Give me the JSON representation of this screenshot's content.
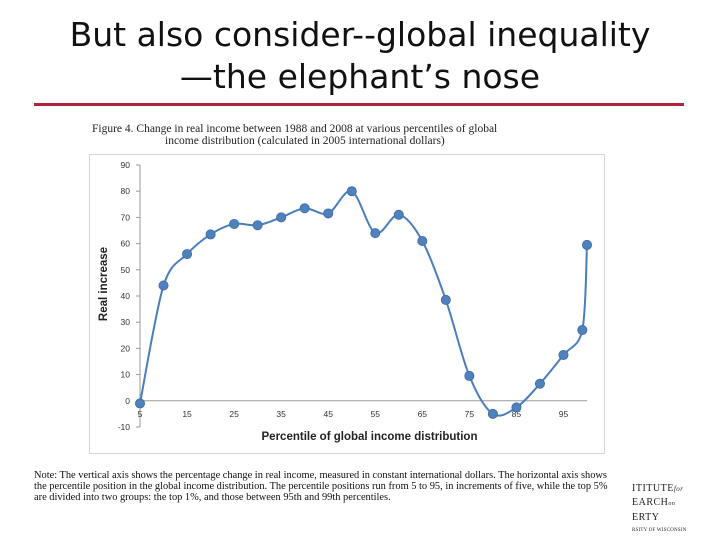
{
  "slide": {
    "title_line1": "But also consider--global inequality",
    "title_line2": "—the elephant’s nose",
    "accent_color": "#b0243a"
  },
  "figure": {
    "caption_line1": "Figure 4. Change in real income between 1988 and 2008 at various percentiles of global",
    "caption_line2": "income distribution (calculated in 2005 international dollars)",
    "note": "Note: The vertical axis shows the percentage change in real income, measured in constant international dollars. The horizontal axis shows the percentile position in the global income distribution. The percentile positions run from 5 to 95, in increments of five, while the top 5% are divided into two groups: the top 1%, and those between 95th and 99th percentiles."
  },
  "logo": {
    "line1": "ITITUTE",
    "line1b": "for",
    "line2": "EARCH",
    "line2b": "on",
    "line3": "ERTY",
    "line4": "RSITY OF WISCONSIN"
  },
  "chart_data": {
    "type": "line",
    "xlabel": "Percentile of global income distribution",
    "ylabel": "Real increase",
    "ylim": [
      -10,
      90
    ],
    "xlim": [
      5,
      100
    ],
    "yticks": [
      -10,
      0,
      10,
      20,
      30,
      40,
      50,
      60,
      70,
      80,
      90
    ],
    "xticks": [
      5,
      15,
      25,
      35,
      45,
      55,
      65,
      75,
      85,
      95
    ],
    "line_color": "#4a7ebb",
    "marker_color": "#4f81bd",
    "points": [
      {
        "x": 5,
        "y": -1
      },
      {
        "x": 10,
        "y": 44
      },
      {
        "x": 15,
        "y": 56
      },
      {
        "x": 20,
        "y": 63.5
      },
      {
        "x": 25,
        "y": 67.5
      },
      {
        "x": 30,
        "y": 67
      },
      {
        "x": 35,
        "y": 70
      },
      {
        "x": 40,
        "y": 73.5
      },
      {
        "x": 45,
        "y": 71.5
      },
      {
        "x": 50,
        "y": 80
      },
      {
        "x": 55,
        "y": 64
      },
      {
        "x": 60,
        "y": 71
      },
      {
        "x": 65,
        "y": 61
      },
      {
        "x": 70,
        "y": 38.5
      },
      {
        "x": 75,
        "y": 9.5
      },
      {
        "x": 80,
        "y": -5
      },
      {
        "x": 85,
        "y": -2.5
      },
      {
        "x": 90,
        "y": 6.5
      },
      {
        "x": 95,
        "y": 17.5
      },
      {
        "x": 99,
        "y": 27
      },
      {
        "x": 100,
        "y": 59.5
      }
    ]
  }
}
